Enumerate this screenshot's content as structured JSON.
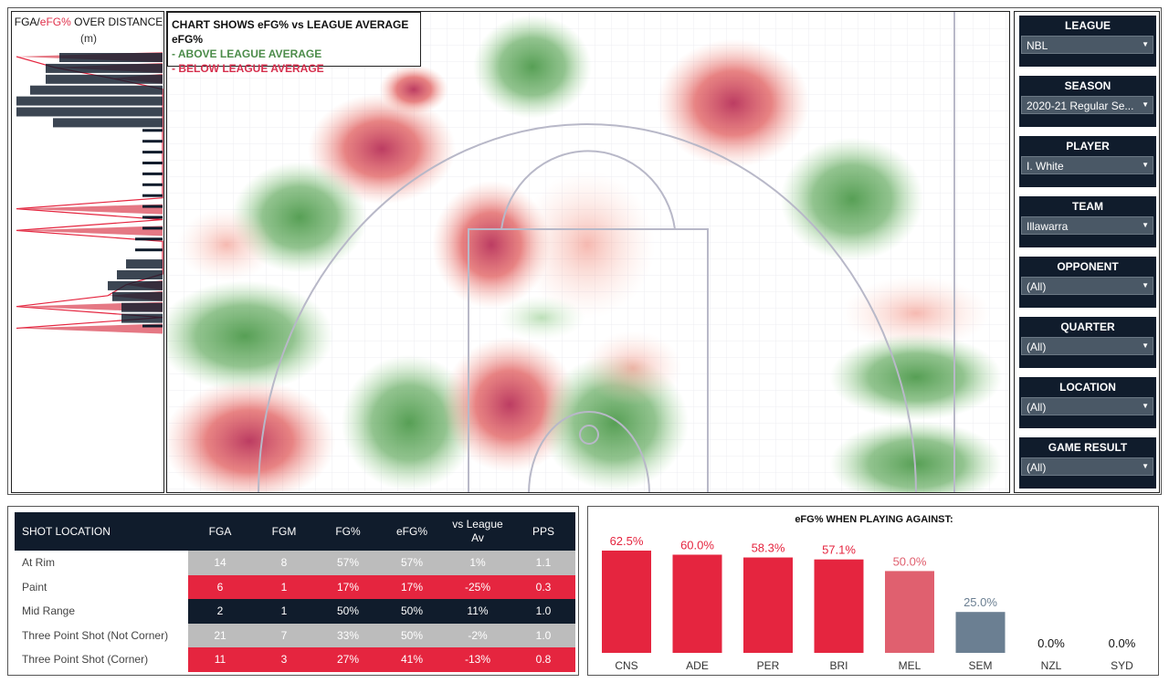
{
  "distance_panel": {
    "title_prefix": "FGA/",
    "title_red": "eFG%",
    "title_suffix": " OVER DISTANCE",
    "unit": "(m)"
  },
  "legend": {
    "title": "CHART SHOWS eFG% vs LEAGUE AVERAGE eFG%",
    "above": "- ABOVE LEAGUE AVERAGE",
    "below": "- BELOW LEAGUE AVERAGE"
  },
  "colors": {
    "navy": "#101c2c",
    "red": "#e5253f",
    "light_red": "#e0606f",
    "grey_blue": "#6b7f92",
    "green": "#4c8c4a",
    "grey": "#bcbcbc"
  },
  "filters": [
    {
      "label": "LEAGUE",
      "value": "NBL"
    },
    {
      "label": "SEASON",
      "value": "2020-21 Regular Se..."
    },
    {
      "label": "PLAYER",
      "value": "I. White"
    },
    {
      "label": "TEAM",
      "value": "Illawarra"
    },
    {
      "label": "OPPONENT",
      "value": "(All)"
    },
    {
      "label": "QUARTER",
      "value": "(All)"
    },
    {
      "label": "LOCATION",
      "value": "(All)"
    },
    {
      "label": "GAME RESULT",
      "value": "(All)"
    }
  ],
  "shot_table": {
    "headers": [
      "SHOT LOCATION",
      "FGA",
      "FGM",
      "FG%",
      "eFG%",
      "vs League Av",
      "PPS"
    ],
    "rows": [
      [
        "At Rim",
        "14",
        "8",
        "57%",
        "57%",
        "1%",
        "1.1"
      ],
      [
        "Paint",
        "6",
        "1",
        "17%",
        "17%",
        "-25%",
        "0.3"
      ],
      [
        "Mid Range",
        "2",
        "1",
        "50%",
        "50%",
        "11%",
        "1.0"
      ],
      [
        "Three Point Shot (Not Corner)",
        "21",
        "7",
        "33%",
        "50%",
        "-2%",
        "1.0"
      ],
      [
        "Three Point Shot (Corner)",
        "11",
        "3",
        "27%",
        "41%",
        "-13%",
        "0.8"
      ]
    ]
  },
  "chart_data": [
    {
      "type": "bar",
      "title": "eFG% WHEN PLAYING AGAINST:",
      "categories": [
        "CNS",
        "ADE",
        "PER",
        "BRI",
        "MEL",
        "SEM",
        "NZL",
        "SYD"
      ],
      "values": [
        62.5,
        60.0,
        58.3,
        57.1,
        50.0,
        25.0,
        0.0,
        0.0
      ],
      "labels": [
        "62.5%",
        "60.0%",
        "58.3%",
        "57.1%",
        "50.0%",
        "25.0%",
        "0.0%",
        "0.0%"
      ],
      "bar_colors": [
        "#e5253f",
        "#e5253f",
        "#e5253f",
        "#e5253f",
        "#e0606f",
        "#6b7f92",
        "#6b7f92",
        "#6b7f92"
      ],
      "label_colors": [
        "#e5253f",
        "#e5253f",
        "#e5253f",
        "#e5253f",
        "#e0606f",
        "#6b7f92",
        "#111111",
        "#111111"
      ],
      "ylim": [
        0,
        70
      ]
    },
    {
      "type": "bar",
      "title": "FGA/eFG% OVER DISTANCE",
      "orientation": "horizontal",
      "distance_buckets": [
        {
          "fga": 113,
          "efg": 160
        },
        {
          "fga": 128,
          "efg": 118
        },
        {
          "fga": 128,
          "efg": 55
        },
        {
          "fga": 145,
          "efg": 0
        },
        {
          "fga": 160,
          "efg": 0
        },
        {
          "fga": 160,
          "efg": 0
        },
        {
          "fga": 120,
          "efg": 0
        },
        {
          "fga": 22,
          "efg": 0
        },
        {
          "fga": 22,
          "efg": 0
        },
        {
          "fga": 22,
          "efg": 0
        },
        {
          "fga": 22,
          "efg": 0
        },
        {
          "fga": 22,
          "efg": 0
        },
        {
          "fga": 22,
          "efg": 0
        },
        {
          "fga": 22,
          "efg": 0
        },
        {
          "fga": 22,
          "efg": 160
        },
        {
          "fga": 22,
          "efg": 0
        },
        {
          "fga": 22,
          "efg": 160
        },
        {
          "fga": 30,
          "efg": 0
        },
        {
          "fga": 30,
          "efg": 0
        },
        {
          "fga": 40,
          "efg": 0
        },
        {
          "fga": 50,
          "efg": 0
        },
        {
          "fga": 60,
          "efg": 40
        },
        {
          "fga": 55,
          "efg": 60
        },
        {
          "fga": 45,
          "efg": 160
        },
        {
          "fga": 45,
          "efg": 0
        },
        {
          "fga": 22,
          "efg": 160
        }
      ]
    }
  ],
  "heatmap": {
    "zones": [
      {
        "cx": 400,
        "cy": 60,
        "rx": 48,
        "ry": 42,
        "color": "green"
      },
      {
        "cx": 235,
        "cy": 150,
        "rx": 60,
        "ry": 45,
        "color": "red"
      },
      {
        "cx": 270,
        "cy": 85,
        "rx": 28,
        "ry": 20,
        "color": "red"
      },
      {
        "cx": 620,
        "cy": 100,
        "rx": 62,
        "ry": 52,
        "color": "red"
      },
      {
        "cx": 460,
        "cy": 255,
        "rx": 55,
        "ry": 60,
        "color": "red-light"
      },
      {
        "cx": 145,
        "cy": 225,
        "rx": 55,
        "ry": 45,
        "color": "green"
      },
      {
        "cx": 750,
        "cy": 205,
        "rx": 58,
        "ry": 50,
        "color": "green"
      },
      {
        "cx": 65,
        "cy": 255,
        "rx": 40,
        "ry": 30,
        "color": "red-light"
      },
      {
        "cx": 355,
        "cy": 255,
        "rx": 48,
        "ry": 52,
        "color": "red"
      },
      {
        "cx": 85,
        "cy": 355,
        "rx": 72,
        "ry": 45,
        "color": "green"
      },
      {
        "cx": 410,
        "cy": 335,
        "rx": 35,
        "ry": 18,
        "color": "green-light"
      },
      {
        "cx": 265,
        "cy": 450,
        "rx": 55,
        "ry": 55,
        "color": "green"
      },
      {
        "cx": 375,
        "cy": 430,
        "rx": 55,
        "ry": 55,
        "color": "red"
      },
      {
        "cx": 490,
        "cy": 450,
        "rx": 60,
        "ry": 55,
        "color": "green"
      },
      {
        "cx": 510,
        "cy": 390,
        "rx": 40,
        "ry": 30,
        "color": "red-light"
      },
      {
        "cx": 90,
        "cy": 470,
        "rx": 70,
        "ry": 50,
        "color": "red"
      },
      {
        "cx": 820,
        "cy": 330,
        "rx": 60,
        "ry": 30,
        "color": "red-light"
      },
      {
        "cx": 820,
        "cy": 400,
        "rx": 70,
        "ry": 35,
        "color": "green"
      },
      {
        "cx": 820,
        "cy": 495,
        "rx": 70,
        "ry": 35,
        "color": "green"
      }
    ]
  }
}
